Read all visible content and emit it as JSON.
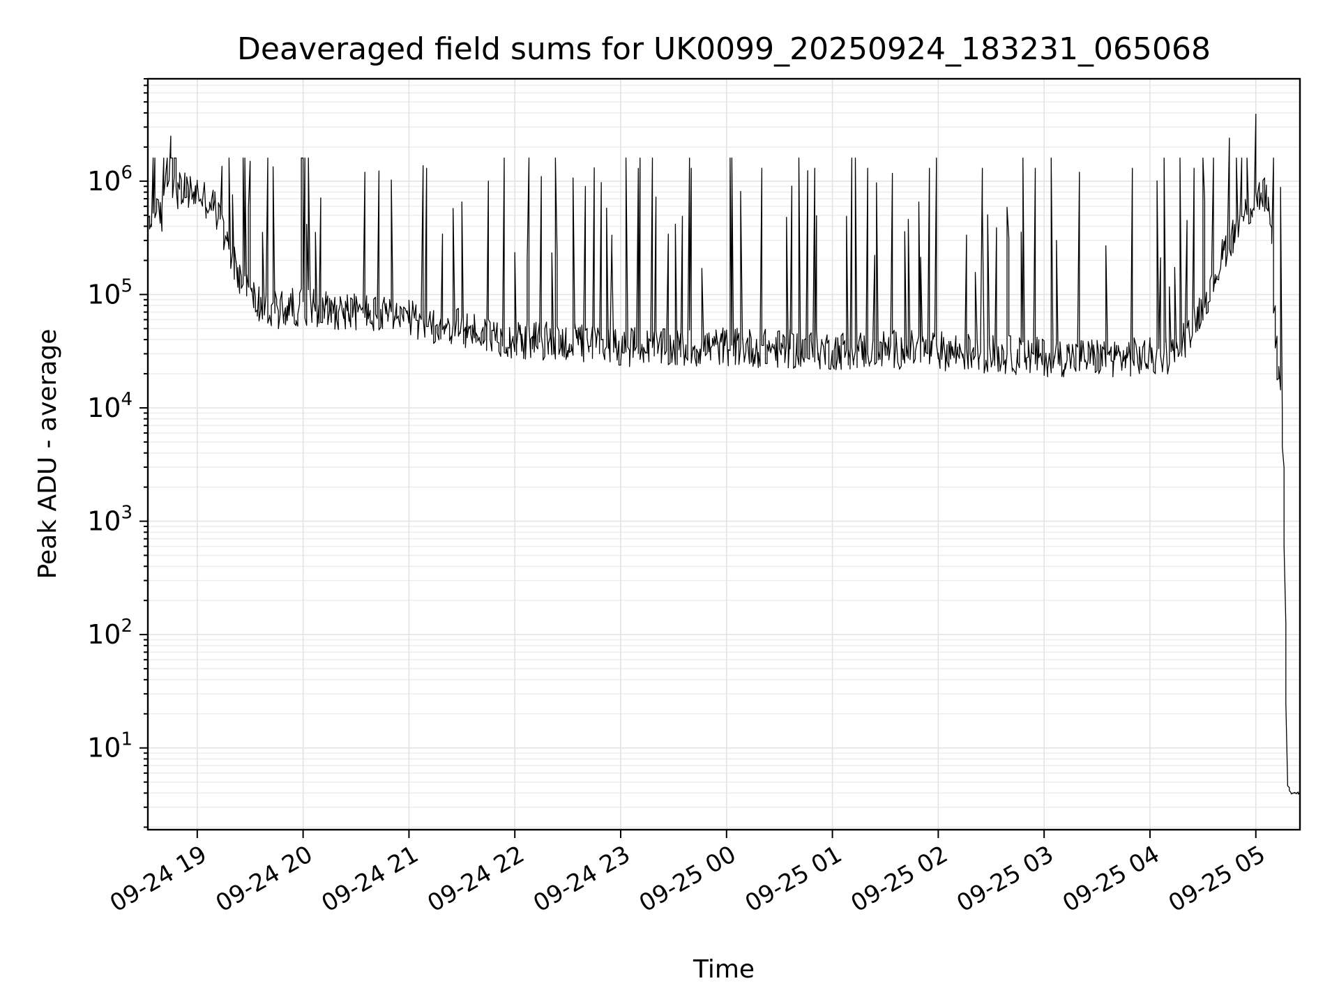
{
  "chart_data": {
    "type": "line",
    "title": "Deaveraged field sums for UK0099_20250924_183231_065068",
    "xlabel": "Time",
    "ylabel": "Peak ADU - average",
    "yscale": "log",
    "ylim": [
      1.9,
      8000000
    ],
    "xlim": [
      "2025-09-24 18:32",
      "2025-09-25 05:25"
    ],
    "grid": true,
    "legend": "none",
    "line_color": "#000000",
    "x_ticks": [
      "2025-09-24 19:00",
      "2025-09-24 20:00",
      "2025-09-24 21:00",
      "2025-09-24 22:00",
      "2025-09-24 23:00",
      "2025-09-25 00:00",
      "2025-09-25 01:00",
      "2025-09-25 02:00",
      "2025-09-25 03:00",
      "2025-09-25 04:00",
      "2025-09-25 05:00"
    ],
    "x_tick_labels": [
      "09-24 19",
      "09-24 20",
      "09-24 21",
      "09-24 22",
      "09-24 23",
      "09-25 00",
      "09-25 01",
      "09-25 02",
      "09-25 03",
      "09-25 04",
      "09-25 05"
    ],
    "y_ticks": [
      10,
      100,
      1000,
      10000,
      100000,
      1000000
    ],
    "y_tick_labels": [
      {
        "base": "10",
        "exp": "1"
      },
      {
        "base": "10",
        "exp": "2"
      },
      {
        "base": "10",
        "exp": "3"
      },
      {
        "base": "10",
        "exp": "4"
      },
      {
        "base": "10",
        "exp": "5"
      },
      {
        "base": "10",
        "exp": "6"
      }
    ],
    "series": [
      {
        "x": [
          "2025-09-24 18:32",
          "2025-09-24 18:40",
          "2025-09-24 18:42",
          "2025-09-24 18:45",
          "2025-09-24 18:50",
          "2025-09-24 19:00",
          "2025-09-24 19:10",
          "2025-09-24 19:20",
          "2025-09-24 19:30",
          "2025-09-24 19:40",
          "2025-09-24 20:00",
          "2025-09-24 20:30",
          "2025-09-24 21:00",
          "2025-09-24 21:30",
          "2025-09-24 22:00",
          "2025-09-24 22:30",
          "2025-09-24 23:00",
          "2025-09-24 23:30",
          "2025-09-25 00:00",
          "2025-09-25 00:30",
          "2025-09-25 01:00",
          "2025-09-25 01:30",
          "2025-09-25 02:00",
          "2025-09-25 02:30",
          "2025-09-25 03:00",
          "2025-09-25 03:30",
          "2025-09-25 04:00",
          "2025-09-25 04:15",
          "2025-09-25 04:30",
          "2025-09-25 04:45",
          "2025-09-25 05:00",
          "2025-09-25 05:05",
          "2025-09-25 05:08",
          "2025-09-25 05:10",
          "2025-09-25 05:12",
          "2025-09-25 05:14",
          "2025-09-25 05:16",
          "2025-09-25 05:18",
          "2025-09-25 05:20",
          "2025-09-25 05:22",
          "2025-09-25 05:25"
        ],
        "y": [
          450000,
          500000,
          1000000,
          900000,
          800000,
          800000,
          600000,
          200000,
          100000,
          70000,
          80000,
          70000,
          60000,
          50000,
          40000,
          38000,
          35000,
          33000,
          35000,
          33000,
          32000,
          33000,
          32000,
          30000,
          28000,
          28000,
          28000,
          30000,
          80000,
          300000,
          700000,
          800000,
          500000,
          150000,
          30000,
          15000,
          3000,
          5,
          4,
          4,
          4
        ],
        "spikes": [
          {
            "x": "2025-09-24 18:45",
            "y": 2500000
          },
          {
            "x": "2025-09-24 19:30",
            "y": 1500000
          },
          {
            "x": "2025-09-24 20:00",
            "y": 1600000
          },
          {
            "x": "2025-09-24 20:35",
            "y": 1200000
          },
          {
            "x": "2025-09-24 21:10",
            "y": 1300000
          },
          {
            "x": "2025-09-24 21:45",
            "y": 1000000
          },
          {
            "x": "2025-09-24 22:15",
            "y": 1100000
          },
          {
            "x": "2025-09-24 22:40",
            "y": 900000
          },
          {
            "x": "2025-09-24 23:10",
            "y": 1300000
          },
          {
            "x": "2025-09-24 23:40",
            "y": 1300000
          },
          {
            "x": "2025-09-25 00:20",
            "y": 1300000
          },
          {
            "x": "2025-09-25 00:50",
            "y": 1300000
          },
          {
            "x": "2025-09-25 01:20",
            "y": 1300000
          },
          {
            "x": "2025-09-25 01:55",
            "y": 1300000
          },
          {
            "x": "2025-09-25 02:25",
            "y": 1300000
          },
          {
            "x": "2025-09-25 02:55",
            "y": 1300000
          },
          {
            "x": "2025-09-25 03:20",
            "y": 1200000
          },
          {
            "x": "2025-09-25 03:50",
            "y": 1300000
          },
          {
            "x": "2025-09-25 04:25",
            "y": 1300000
          },
          {
            "x": "2025-09-25 04:45",
            "y": 2400000
          },
          {
            "x": "2025-09-25 05:00",
            "y": 3900000
          }
        ]
      }
    ]
  }
}
